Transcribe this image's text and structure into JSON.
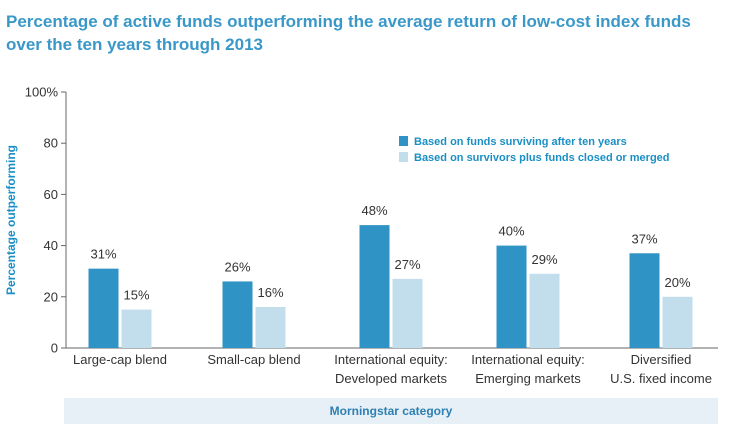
{
  "title_lines": [
    "Percentage of active funds outperforming the average return of low-cost index funds",
    "over the ten years through 2013"
  ],
  "colors": {
    "surviving": "#2f93c6",
    "with_closed": "#c2deec",
    "axis_text": "#1a8fc5",
    "title": "#3a98c9"
  },
  "chart_data": {
    "type": "bar",
    "title": "Percentage of active funds outperforming the average return of low-cost index funds over the ten years through 2013",
    "xlabel": "Morningstar category",
    "ylabel": "Percentage outperforming",
    "ylim": [
      0,
      100
    ],
    "yticks": [
      0,
      20,
      40,
      60,
      80,
      100
    ],
    "ytick_labels": [
      "0",
      "20",
      "40",
      "60",
      "80",
      "100%"
    ],
    "categories": [
      [
        "Large-cap blend"
      ],
      [
        "Small-cap blend"
      ],
      [
        "International equity:",
        "Developed markets"
      ],
      [
        "International equity:",
        "Emerging markets"
      ],
      [
        "Diversified",
        "U.S. fixed income"
      ]
    ],
    "series": [
      {
        "name": "Based on funds surviving after ten years",
        "values": [
          31,
          26,
          48,
          40,
          37
        ],
        "labels": [
          "31%",
          "26%",
          "48%",
          "40%",
          "37%"
        ]
      },
      {
        "name": "Based on survivors plus funds closed or merged",
        "values": [
          15,
          16,
          27,
          29,
          20
        ],
        "labels": [
          "15%",
          "16%",
          "27%",
          "29%",
          "20%"
        ]
      }
    ],
    "legend": "top-right",
    "grid": false
  }
}
